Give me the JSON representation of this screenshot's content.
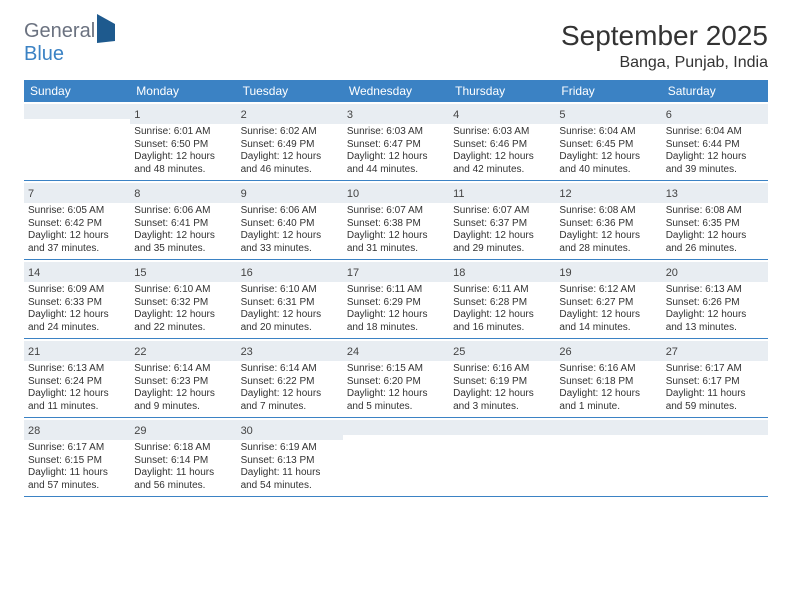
{
  "logo": {
    "word1": "General",
    "word2": "Blue"
  },
  "title": "September 2025",
  "location": "Banga, Punjab, India",
  "colors": {
    "header_bg": "#3b82c4",
    "header_text": "#ffffff",
    "daynum_bg": "#e8edf2",
    "text": "#333333",
    "rule": "#3b82c4"
  },
  "typography": {
    "title_fontsize": 28,
    "location_fontsize": 16,
    "weekday_fontsize": 12,
    "daynum_fontsize": 11,
    "body_fontsize": 10
  },
  "weekdays": [
    "Sunday",
    "Monday",
    "Tuesday",
    "Wednesday",
    "Thursday",
    "Friday",
    "Saturday"
  ],
  "weeks": [
    [
      {
        "n": "",
        "sr": "",
        "ss": "",
        "dl": ""
      },
      {
        "n": "1",
        "sr": "Sunrise: 6:01 AM",
        "ss": "Sunset: 6:50 PM",
        "dl": "Daylight: 12 hours and 48 minutes."
      },
      {
        "n": "2",
        "sr": "Sunrise: 6:02 AM",
        "ss": "Sunset: 6:49 PM",
        "dl": "Daylight: 12 hours and 46 minutes."
      },
      {
        "n": "3",
        "sr": "Sunrise: 6:03 AM",
        "ss": "Sunset: 6:47 PM",
        "dl": "Daylight: 12 hours and 44 minutes."
      },
      {
        "n": "4",
        "sr": "Sunrise: 6:03 AM",
        "ss": "Sunset: 6:46 PM",
        "dl": "Daylight: 12 hours and 42 minutes."
      },
      {
        "n": "5",
        "sr": "Sunrise: 6:04 AM",
        "ss": "Sunset: 6:45 PM",
        "dl": "Daylight: 12 hours and 40 minutes."
      },
      {
        "n": "6",
        "sr": "Sunrise: 6:04 AM",
        "ss": "Sunset: 6:44 PM",
        "dl": "Daylight: 12 hours and 39 minutes."
      }
    ],
    [
      {
        "n": "7",
        "sr": "Sunrise: 6:05 AM",
        "ss": "Sunset: 6:42 PM",
        "dl": "Daylight: 12 hours and 37 minutes."
      },
      {
        "n": "8",
        "sr": "Sunrise: 6:06 AM",
        "ss": "Sunset: 6:41 PM",
        "dl": "Daylight: 12 hours and 35 minutes."
      },
      {
        "n": "9",
        "sr": "Sunrise: 6:06 AM",
        "ss": "Sunset: 6:40 PM",
        "dl": "Daylight: 12 hours and 33 minutes."
      },
      {
        "n": "10",
        "sr": "Sunrise: 6:07 AM",
        "ss": "Sunset: 6:38 PM",
        "dl": "Daylight: 12 hours and 31 minutes."
      },
      {
        "n": "11",
        "sr": "Sunrise: 6:07 AM",
        "ss": "Sunset: 6:37 PM",
        "dl": "Daylight: 12 hours and 29 minutes."
      },
      {
        "n": "12",
        "sr": "Sunrise: 6:08 AM",
        "ss": "Sunset: 6:36 PM",
        "dl": "Daylight: 12 hours and 28 minutes."
      },
      {
        "n": "13",
        "sr": "Sunrise: 6:08 AM",
        "ss": "Sunset: 6:35 PM",
        "dl": "Daylight: 12 hours and 26 minutes."
      }
    ],
    [
      {
        "n": "14",
        "sr": "Sunrise: 6:09 AM",
        "ss": "Sunset: 6:33 PM",
        "dl": "Daylight: 12 hours and 24 minutes."
      },
      {
        "n": "15",
        "sr": "Sunrise: 6:10 AM",
        "ss": "Sunset: 6:32 PM",
        "dl": "Daylight: 12 hours and 22 minutes."
      },
      {
        "n": "16",
        "sr": "Sunrise: 6:10 AM",
        "ss": "Sunset: 6:31 PM",
        "dl": "Daylight: 12 hours and 20 minutes."
      },
      {
        "n": "17",
        "sr": "Sunrise: 6:11 AM",
        "ss": "Sunset: 6:29 PM",
        "dl": "Daylight: 12 hours and 18 minutes."
      },
      {
        "n": "18",
        "sr": "Sunrise: 6:11 AM",
        "ss": "Sunset: 6:28 PM",
        "dl": "Daylight: 12 hours and 16 minutes."
      },
      {
        "n": "19",
        "sr": "Sunrise: 6:12 AM",
        "ss": "Sunset: 6:27 PM",
        "dl": "Daylight: 12 hours and 14 minutes."
      },
      {
        "n": "20",
        "sr": "Sunrise: 6:13 AM",
        "ss": "Sunset: 6:26 PM",
        "dl": "Daylight: 12 hours and 13 minutes."
      }
    ],
    [
      {
        "n": "21",
        "sr": "Sunrise: 6:13 AM",
        "ss": "Sunset: 6:24 PM",
        "dl": "Daylight: 12 hours and 11 minutes."
      },
      {
        "n": "22",
        "sr": "Sunrise: 6:14 AM",
        "ss": "Sunset: 6:23 PM",
        "dl": "Daylight: 12 hours and 9 minutes."
      },
      {
        "n": "23",
        "sr": "Sunrise: 6:14 AM",
        "ss": "Sunset: 6:22 PM",
        "dl": "Daylight: 12 hours and 7 minutes."
      },
      {
        "n": "24",
        "sr": "Sunrise: 6:15 AM",
        "ss": "Sunset: 6:20 PM",
        "dl": "Daylight: 12 hours and 5 minutes."
      },
      {
        "n": "25",
        "sr": "Sunrise: 6:16 AM",
        "ss": "Sunset: 6:19 PM",
        "dl": "Daylight: 12 hours and 3 minutes."
      },
      {
        "n": "26",
        "sr": "Sunrise: 6:16 AM",
        "ss": "Sunset: 6:18 PM",
        "dl": "Daylight: 12 hours and 1 minute."
      },
      {
        "n": "27",
        "sr": "Sunrise: 6:17 AM",
        "ss": "Sunset: 6:17 PM",
        "dl": "Daylight: 11 hours and 59 minutes."
      }
    ],
    [
      {
        "n": "28",
        "sr": "Sunrise: 6:17 AM",
        "ss": "Sunset: 6:15 PM",
        "dl": "Daylight: 11 hours and 57 minutes."
      },
      {
        "n": "29",
        "sr": "Sunrise: 6:18 AM",
        "ss": "Sunset: 6:14 PM",
        "dl": "Daylight: 11 hours and 56 minutes."
      },
      {
        "n": "30",
        "sr": "Sunrise: 6:19 AM",
        "ss": "Sunset: 6:13 PM",
        "dl": "Daylight: 11 hours and 54 minutes."
      },
      {
        "n": "",
        "sr": "",
        "ss": "",
        "dl": ""
      },
      {
        "n": "",
        "sr": "",
        "ss": "",
        "dl": ""
      },
      {
        "n": "",
        "sr": "",
        "ss": "",
        "dl": ""
      },
      {
        "n": "",
        "sr": "",
        "ss": "",
        "dl": ""
      }
    ]
  ]
}
